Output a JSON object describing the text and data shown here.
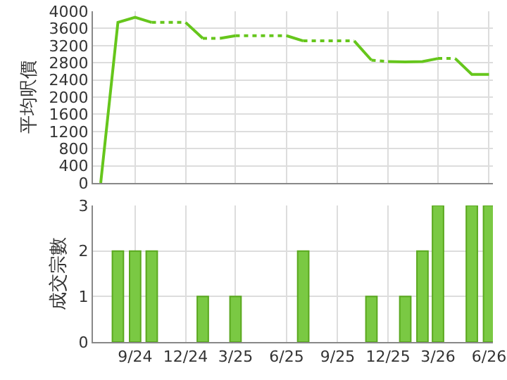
{
  "chart_data": [
    {
      "type": "line",
      "ylabel": "平均呎價",
      "xlim": [
        "2024-06-17",
        "2026-06-08"
      ],
      "xticks": [
        {
          "value": "2024-09",
          "label": null
        },
        {
          "value": "2024-12",
          "label": null
        },
        {
          "value": "2025-03",
          "label": null
        },
        {
          "value": "2025-06",
          "label": null
        },
        {
          "value": "2025-09",
          "label": null
        },
        {
          "value": "2025-12",
          "label": null
        },
        {
          "value": "2026-03",
          "label": null
        },
        {
          "value": "2026-06",
          "label": null
        }
      ],
      "ylim": [
        0,
        4000
      ],
      "yticks": [
        0,
        400,
        800,
        1200,
        1600,
        2000,
        2400,
        2800,
        3200,
        3600,
        4000
      ],
      "grid": true,
      "tick_labels": "y",
      "marker": "none",
      "series": [
        {
          "color": "#66c61c",
          "line_style": "solid",
          "x": [
            "2024-07",
            "2024-08",
            "2024-09",
            "2024-10"
          ],
          "values": [
            0,
            3740,
            3860,
            3740
          ]
        },
        {
          "color": "#66c61c",
          "line_style": "dotted",
          "x": [
            "2024-10",
            "2024-11",
            "2024-12"
          ],
          "values": [
            3740,
            3740,
            3740
          ]
        },
        {
          "color": "#66c61c",
          "line_style": "solid",
          "x": [
            "2024-12",
            "2025-01"
          ],
          "values": [
            3740,
            3370
          ]
        },
        {
          "color": "#66c61c",
          "line_style": "dotted",
          "x": [
            "2025-01",
            "2025-02"
          ],
          "values": [
            3370,
            3370
          ]
        },
        {
          "color": "#66c61c",
          "line_style": "solid",
          "x": [
            "2025-02",
            "2025-03"
          ],
          "values": [
            3370,
            3430
          ]
        },
        {
          "color": "#66c61c",
          "line_style": "dotted",
          "x": [
            "2025-03",
            "2025-04",
            "2025-05",
            "2025-06"
          ],
          "values": [
            3430,
            3430,
            3430,
            3430
          ]
        },
        {
          "color": "#66c61c",
          "line_style": "solid",
          "x": [
            "2025-06",
            "2025-07"
          ],
          "values": [
            3430,
            3310
          ]
        },
        {
          "color": "#66c61c",
          "line_style": "dotted",
          "x": [
            "2025-07",
            "2025-08",
            "2025-09",
            "2025-10"
          ],
          "values": [
            3310,
            3310,
            3310,
            3310
          ]
        },
        {
          "color": "#66c61c",
          "line_style": "solid",
          "x": [
            "2025-10",
            "2025-11"
          ],
          "values": [
            3310,
            2860
          ]
        },
        {
          "color": "#66c61c",
          "line_style": "dotted",
          "x": [
            "2025-11",
            "2025-12"
          ],
          "values": [
            2860,
            2830
          ]
        },
        {
          "color": "#66c61c",
          "line_style": "solid",
          "x": [
            "2025-12",
            "2026-01",
            "2026-02",
            "2026-03"
          ],
          "values": [
            2830,
            2820,
            2830,
            2900
          ]
        },
        {
          "color": "#66c61c",
          "line_style": "dotted",
          "x": [
            "2026-03",
            "2026-04"
          ],
          "values": [
            2900,
            2900
          ]
        },
        {
          "color": "#66c61c",
          "line_style": "solid",
          "x": [
            "2026-04",
            "2026-05",
            "2026-06"
          ],
          "values": [
            2900,
            2530,
            2530
          ]
        }
      ]
    },
    {
      "type": "bar",
      "ylabel": "成交宗數",
      "xlim": [
        "2024-06-17",
        "2026-06-08"
      ],
      "xticks": [
        {
          "value": "2024-09",
          "label": "9/24"
        },
        {
          "value": "2024-12",
          "label": "12/24"
        },
        {
          "value": "2025-03",
          "label": "3/25"
        },
        {
          "value": "2025-06",
          "label": "6/25"
        },
        {
          "value": "2025-09",
          "label": "9/25"
        },
        {
          "value": "2025-12",
          "label": "12/25"
        },
        {
          "value": "2026-03",
          "label": "3/26"
        },
        {
          "value": "2026-06",
          "label": "6/26"
        }
      ],
      "ylim": [
        0,
        3
      ],
      "yticks": [
        0,
        1,
        2,
        3
      ],
      "grid": true,
      "x": [
        "2024-08",
        "2024-09",
        "2024-10",
        "2025-01",
        "2025-03",
        "2025-07",
        "2025-11",
        "2026-01",
        "2026-02",
        "2026-03",
        "2026-05",
        "2026-06"
      ],
      "values": [
        2,
        2,
        2,
        1,
        1,
        2,
        1,
        1,
        2,
        3,
        3,
        3
      ],
      "color": "#7ac943"
    }
  ]
}
